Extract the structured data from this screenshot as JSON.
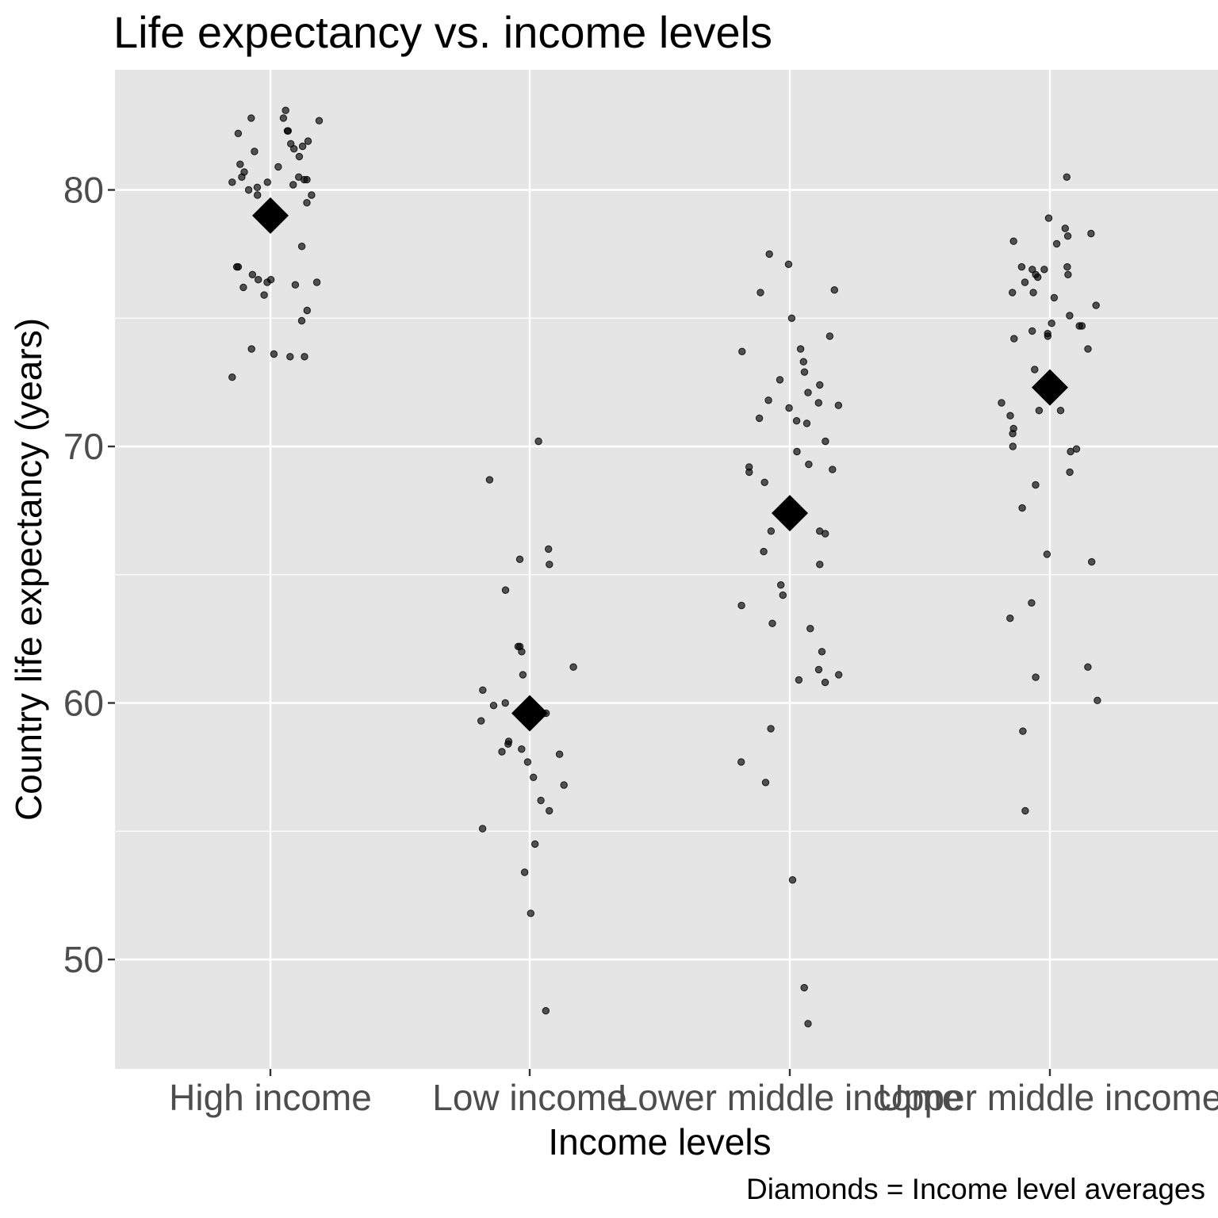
{
  "chart_data": {
    "type": "scatter",
    "title": "Life expectancy vs. income levels",
    "xlabel": "Income levels",
    "ylabel": "Country life expectancy (years)",
    "caption": "Diamonds = Income level averages",
    "categories": [
      "High income",
      "Low income",
      "Lower middle income",
      "Upper middle income"
    ],
    "ylim": [
      45.8,
      84.7
    ],
    "yticks": [
      50,
      60,
      70,
      80
    ],
    "grid": true,
    "legend": "none",
    "colors": {
      "panel": "#e5e5e5",
      "grid": "#ffffff",
      "point": "#000000"
    },
    "series": [
      {
        "name": "Country",
        "marker": "circle",
        "points": [
          {
            "x": "High income",
            "y": 83.1
          },
          {
            "x": "High income",
            "y": 82.8
          },
          {
            "x": "High income",
            "y": 82.8
          },
          {
            "x": "High income",
            "y": 82.7
          },
          {
            "x": "High income",
            "y": 82.3
          },
          {
            "x": "High income",
            "y": 82.3
          },
          {
            "x": "High income",
            "y": 82.2
          },
          {
            "x": "High income",
            "y": 81.9
          },
          {
            "x": "High income",
            "y": 81.8
          },
          {
            "x": "High income",
            "y": 81.7
          },
          {
            "x": "High income",
            "y": 81.6
          },
          {
            "x": "High income",
            "y": 81.5
          },
          {
            "x": "High income",
            "y": 81.3
          },
          {
            "x": "High income",
            "y": 81.0
          },
          {
            "x": "High income",
            "y": 80.9
          },
          {
            "x": "High income",
            "y": 80.7
          },
          {
            "x": "High income",
            "y": 80.5
          },
          {
            "x": "High income",
            "y": 80.5
          },
          {
            "x": "High income",
            "y": 80.4
          },
          {
            "x": "High income",
            "y": 80.4
          },
          {
            "x": "High income",
            "y": 80.3
          },
          {
            "x": "High income",
            "y": 80.3
          },
          {
            "x": "High income",
            "y": 80.2
          },
          {
            "x": "High income",
            "y": 80.1
          },
          {
            "x": "High income",
            "y": 80.0
          },
          {
            "x": "High income",
            "y": 79.8
          },
          {
            "x": "High income",
            "y": 79.8
          },
          {
            "x": "High income",
            "y": 79.5
          },
          {
            "x": "High income",
            "y": 78.9
          },
          {
            "x": "High income",
            "y": 78.8
          },
          {
            "x": "High income",
            "y": 77.8
          },
          {
            "x": "High income",
            "y": 77.0
          },
          {
            "x": "High income",
            "y": 77.0
          },
          {
            "x": "High income",
            "y": 76.7
          },
          {
            "x": "High income",
            "y": 76.5
          },
          {
            "x": "High income",
            "y": 76.5
          },
          {
            "x": "High income",
            "y": 76.4
          },
          {
            "x": "High income",
            "y": 76.4
          },
          {
            "x": "High income",
            "y": 76.3
          },
          {
            "x": "High income",
            "y": 76.2
          },
          {
            "x": "High income",
            "y": 75.9
          },
          {
            "x": "High income",
            "y": 75.3
          },
          {
            "x": "High income",
            "y": 74.9
          },
          {
            "x": "High income",
            "y": 73.8
          },
          {
            "x": "High income",
            "y": 73.6
          },
          {
            "x": "High income",
            "y": 73.5
          },
          {
            "x": "High income",
            "y": 73.5
          },
          {
            "x": "High income",
            "y": 72.7
          },
          {
            "x": "Low income",
            "y": 70.2
          },
          {
            "x": "Low income",
            "y": 68.7
          },
          {
            "x": "Low income",
            "y": 66.0
          },
          {
            "x": "Low income",
            "y": 65.6
          },
          {
            "x": "Low income",
            "y": 65.4
          },
          {
            "x": "Low income",
            "y": 64.4
          },
          {
            "x": "Low income",
            "y": 62.2
          },
          {
            "x": "Low income",
            "y": 62.2
          },
          {
            "x": "Low income",
            "y": 62.0
          },
          {
            "x": "Low income",
            "y": 61.4
          },
          {
            "x": "Low income",
            "y": 61.1
          },
          {
            "x": "Low income",
            "y": 60.5
          },
          {
            "x": "Low income",
            "y": 60.0
          },
          {
            "x": "Low income",
            "y": 59.9
          },
          {
            "x": "Low income",
            "y": 59.6
          },
          {
            "x": "Low income",
            "y": 59.3
          },
          {
            "x": "Low income",
            "y": 58.5
          },
          {
            "x": "Low income",
            "y": 58.4
          },
          {
            "x": "Low income",
            "y": 58.2
          },
          {
            "x": "Low income",
            "y": 58.1
          },
          {
            "x": "Low income",
            "y": 58.0
          },
          {
            "x": "Low income",
            "y": 57.7
          },
          {
            "x": "Low income",
            "y": 57.1
          },
          {
            "x": "Low income",
            "y": 56.8
          },
          {
            "x": "Low income",
            "y": 56.2
          },
          {
            "x": "Low income",
            "y": 55.8
          },
          {
            "x": "Low income",
            "y": 55.1
          },
          {
            "x": "Low income",
            "y": 54.5
          },
          {
            "x": "Low income",
            "y": 53.4
          },
          {
            "x": "Low income",
            "y": 51.8
          },
          {
            "x": "Low income",
            "y": 48.0
          },
          {
            "x": "Lower middle income",
            "y": 77.5
          },
          {
            "x": "Lower middle income",
            "y": 77.1
          },
          {
            "x": "Lower middle income",
            "y": 76.1
          },
          {
            "x": "Lower middle income",
            "y": 76.0
          },
          {
            "x": "Lower middle income",
            "y": 75.0
          },
          {
            "x": "Lower middle income",
            "y": 74.3
          },
          {
            "x": "Lower middle income",
            "y": 73.8
          },
          {
            "x": "Lower middle income",
            "y": 73.7
          },
          {
            "x": "Lower middle income",
            "y": 73.3
          },
          {
            "x": "Lower middle income",
            "y": 72.9
          },
          {
            "x": "Lower middle income",
            "y": 72.6
          },
          {
            "x": "Lower middle income",
            "y": 72.4
          },
          {
            "x": "Lower middle income",
            "y": 72.1
          },
          {
            "x": "Lower middle income",
            "y": 71.8
          },
          {
            "x": "Lower middle income",
            "y": 71.7
          },
          {
            "x": "Lower middle income",
            "y": 71.6
          },
          {
            "x": "Lower middle income",
            "y": 71.5
          },
          {
            "x": "Lower middle income",
            "y": 71.1
          },
          {
            "x": "Lower middle income",
            "y": 71.0
          },
          {
            "x": "Lower middle income",
            "y": 70.9
          },
          {
            "x": "Lower middle income",
            "y": 70.2
          },
          {
            "x": "Lower middle income",
            "y": 69.8
          },
          {
            "x": "Lower middle income",
            "y": 69.3
          },
          {
            "x": "Lower middle income",
            "y": 69.2
          },
          {
            "x": "Lower middle income",
            "y": 69.1
          },
          {
            "x": "Lower middle income",
            "y": 69.0
          },
          {
            "x": "Lower middle income",
            "y": 68.6
          },
          {
            "x": "Lower middle income",
            "y": 67.7
          },
          {
            "x": "Lower middle income",
            "y": 66.7
          },
          {
            "x": "Lower middle income",
            "y": 66.7
          },
          {
            "x": "Lower middle income",
            "y": 66.6
          },
          {
            "x": "Lower middle income",
            "y": 65.9
          },
          {
            "x": "Lower middle income",
            "y": 65.4
          },
          {
            "x": "Lower middle income",
            "y": 64.6
          },
          {
            "x": "Lower middle income",
            "y": 64.2
          },
          {
            "x": "Lower middle income",
            "y": 63.8
          },
          {
            "x": "Lower middle income",
            "y": 63.1
          },
          {
            "x": "Lower middle income",
            "y": 62.9
          },
          {
            "x": "Lower middle income",
            "y": 62.0
          },
          {
            "x": "Lower middle income",
            "y": 61.3
          },
          {
            "x": "Lower middle income",
            "y": 61.1
          },
          {
            "x": "Lower middle income",
            "y": 60.9
          },
          {
            "x": "Lower middle income",
            "y": 60.8
          },
          {
            "x": "Lower middle income",
            "y": 59.0
          },
          {
            "x": "Lower middle income",
            "y": 57.7
          },
          {
            "x": "Lower middle income",
            "y": 56.9
          },
          {
            "x": "Lower middle income",
            "y": 53.1
          },
          {
            "x": "Lower middle income",
            "y": 48.9
          },
          {
            "x": "Lower middle income",
            "y": 47.5
          },
          {
            "x": "Upper middle income",
            "y": 80.5
          },
          {
            "x": "Upper middle income",
            "y": 78.9
          },
          {
            "x": "Upper middle income",
            "y": 78.5
          },
          {
            "x": "Upper middle income",
            "y": 78.3
          },
          {
            "x": "Upper middle income",
            "y": 78.2
          },
          {
            "x": "Upper middle income",
            "y": 78.0
          },
          {
            "x": "Upper middle income",
            "y": 77.9
          },
          {
            "x": "Upper middle income",
            "y": 77.0
          },
          {
            "x": "Upper middle income",
            "y": 77.0
          },
          {
            "x": "Upper middle income",
            "y": 76.9
          },
          {
            "x": "Upper middle income",
            "y": 76.9
          },
          {
            "x": "Upper middle income",
            "y": 76.7
          },
          {
            "x": "Upper middle income",
            "y": 76.7
          },
          {
            "x": "Upper middle income",
            "y": 76.6
          },
          {
            "x": "Upper middle income",
            "y": 76.4
          },
          {
            "x": "Upper middle income",
            "y": 76.0
          },
          {
            "x": "Upper middle income",
            "y": 76.0
          },
          {
            "x": "Upper middle income",
            "y": 75.8
          },
          {
            "x": "Upper middle income",
            "y": 75.5
          },
          {
            "x": "Upper middle income",
            "y": 75.1
          },
          {
            "x": "Upper middle income",
            "y": 74.8
          },
          {
            "x": "Upper middle income",
            "y": 74.7
          },
          {
            "x": "Upper middle income",
            "y": 74.7
          },
          {
            "x": "Upper middle income",
            "y": 74.5
          },
          {
            "x": "Upper middle income",
            "y": 74.4
          },
          {
            "x": "Upper middle income",
            "y": 74.3
          },
          {
            "x": "Upper middle income",
            "y": 74.2
          },
          {
            "x": "Upper middle income",
            "y": 73.8
          },
          {
            "x": "Upper middle income",
            "y": 73.0
          },
          {
            "x": "Upper middle income",
            "y": 71.7
          },
          {
            "x": "Upper middle income",
            "y": 71.4
          },
          {
            "x": "Upper middle income",
            "y": 71.4
          },
          {
            "x": "Upper middle income",
            "y": 71.2
          },
          {
            "x": "Upper middle income",
            "y": 70.7
          },
          {
            "x": "Upper middle income",
            "y": 70.5
          },
          {
            "x": "Upper middle income",
            "y": 70.0
          },
          {
            "x": "Upper middle income",
            "y": 69.9
          },
          {
            "x": "Upper middle income",
            "y": 69.8
          },
          {
            "x": "Upper middle income",
            "y": 69.0
          },
          {
            "x": "Upper middle income",
            "y": 68.5
          },
          {
            "x": "Upper middle income",
            "y": 67.6
          },
          {
            "x": "Upper middle income",
            "y": 65.8
          },
          {
            "x": "Upper middle income",
            "y": 65.5
          },
          {
            "x": "Upper middle income",
            "y": 63.9
          },
          {
            "x": "Upper middle income",
            "y": 63.3
          },
          {
            "x": "Upper middle income",
            "y": 61.4
          },
          {
            "x": "Upper middle income",
            "y": 61.0
          },
          {
            "x": "Upper middle income",
            "y": 60.1
          },
          {
            "x": "Upper middle income",
            "y": 58.9
          },
          {
            "x": "Upper middle income",
            "y": 55.8
          }
        ]
      },
      {
        "name": "Income level average",
        "marker": "diamond",
        "points": [
          {
            "x": "High income",
            "y": 79.0
          },
          {
            "x": "Low income",
            "y": 59.6
          },
          {
            "x": "Lower middle income",
            "y": 67.4
          },
          {
            "x": "Upper middle income",
            "y": 72.3
          }
        ]
      }
    ]
  }
}
